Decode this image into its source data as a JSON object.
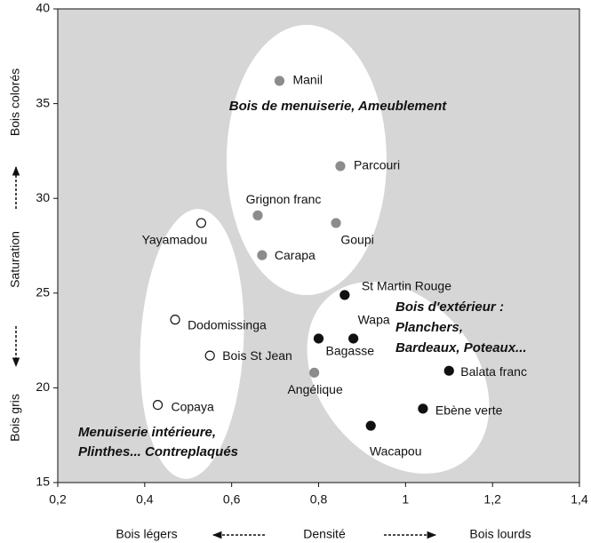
{
  "chart_data": {
    "type": "scatter",
    "xlim": [
      0.2,
      1.4
    ],
    "ylim": [
      15,
      40
    ],
    "xticks": [
      {
        "value": 0.2,
        "label": "0,2"
      },
      {
        "value": 0.4,
        "label": "0,4"
      },
      {
        "value": 0.6,
        "label": "0,6"
      },
      {
        "value": 0.8,
        "label": "0,8"
      },
      1,
      {
        "value": 1.2,
        "label": "1,2"
      },
      {
        "value": 1.4,
        "label": "1,4"
      }
    ],
    "yticks": [
      15,
      20,
      25,
      30,
      35,
      40
    ],
    "x_axis": {
      "label": "Densité",
      "left": "Bois légers",
      "right": "Bois lourds"
    },
    "y_axis": {
      "label": "Saturation",
      "bottom": "Bois gris",
      "top": "Bois colorés"
    },
    "annotations": [
      [
        "Bois de menuiserie, Ameublement"
      ],
      [
        "Bois d'extérieur :",
        "Planchers,",
        "Bardeaux, Poteaux..."
      ],
      [
        "Menuiserie intérieure,",
        "Plinthes... Contreplaqués"
      ]
    ],
    "series": [
      {
        "color": "#8c8c8c",
        "fill": "#8c8c8c",
        "labels": [
          "Manil",
          "Parcouri",
          "Grignon franc",
          "Goupi",
          "Carapa",
          "Angélique"
        ],
        "x": [
          0.71,
          0.85,
          0.66,
          0.84,
          0.67,
          0.79
        ],
        "y": [
          36.2,
          31.7,
          29.1,
          28.7,
          27.0,
          20.8
        ]
      },
      {
        "color": "#111111",
        "fill": "#ffffff",
        "labels": [
          "Yayamadou",
          "Dodomissinga",
          "Bois St Jean",
          "Copaya"
        ],
        "x": [
          0.53,
          0.47,
          0.55,
          0.43
        ],
        "y": [
          28.7,
          23.6,
          21.7,
          19.1
        ]
      },
      {
        "color": "#111111",
        "fill": "#111111",
        "labels": [
          "St Martin Rouge",
          "Bagasse",
          "Wapa",
          "Balata franc",
          "Ebène verte",
          "Wacapou"
        ],
        "x": [
          0.86,
          0.8,
          0.88,
          1.1,
          1.04,
          0.92
        ],
        "y": [
          24.9,
          22.6,
          22.6,
          20.9,
          18.9,
          18.0
        ]
      }
    ]
  }
}
